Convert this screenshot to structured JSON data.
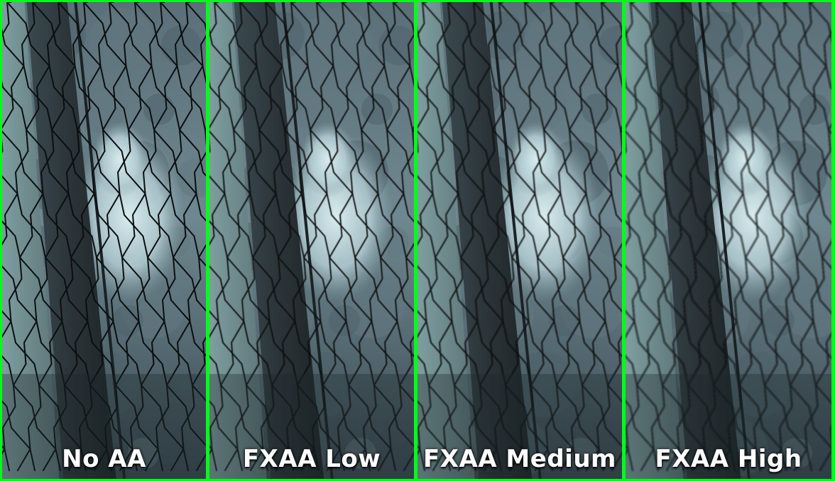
{
  "panels": [
    {
      "label": "No AA"
    },
    {
      "label": "FXAA Low"
    },
    {
      "label": "FXAA Medium"
    },
    {
      "label": "FXAA High"
    }
  ],
  "colors": {
    "border": "#00ff18",
    "sky": "#d8ecef",
    "foliage": "#4a5e68",
    "pole_light": "#7e9ea0",
    "pole_dark": "#2b3438",
    "mesh": "#0c0f10"
  }
}
